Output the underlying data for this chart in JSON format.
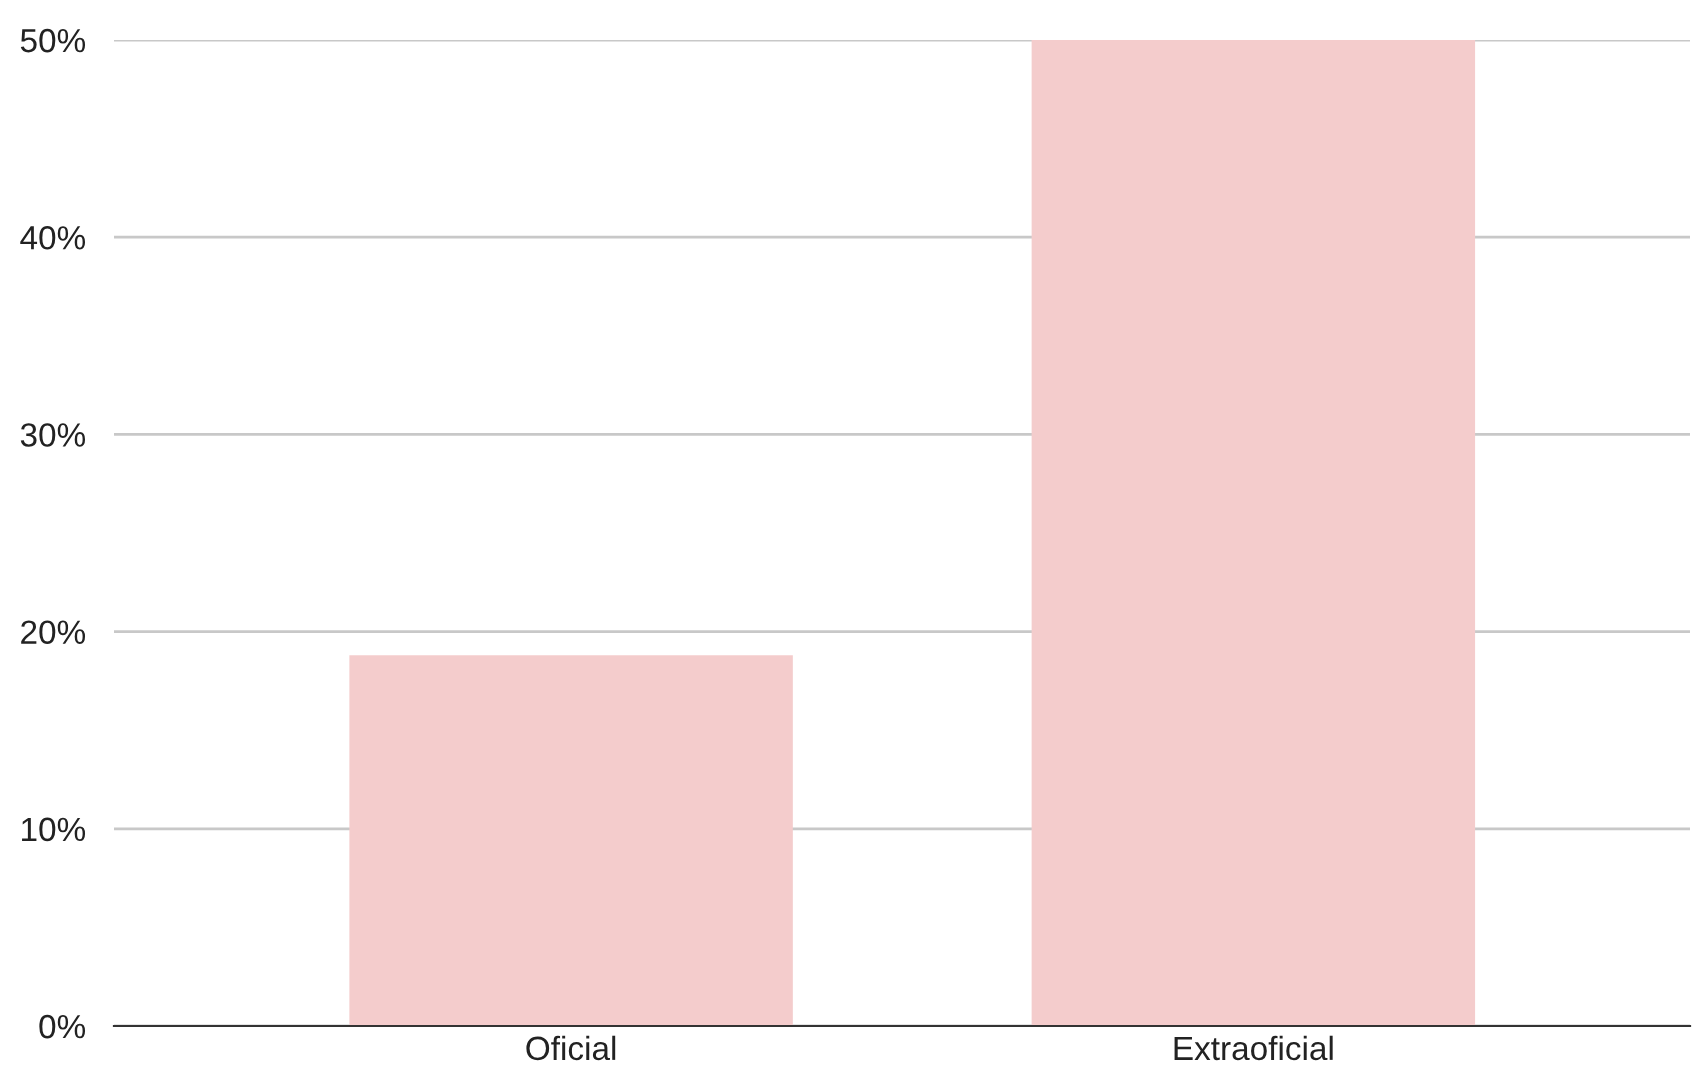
{
  "chart_data": {
    "type": "bar",
    "categories": [
      "Oficial",
      "Extraoficial"
    ],
    "values": [
      18.8,
      50
    ],
    "color": "#f4cccc",
    "ylim": [
      0,
      50
    ],
    "yticks": [
      {
        "value": 0,
        "label": "0%"
      },
      {
        "value": 10,
        "label": "10%"
      },
      {
        "value": 20,
        "label": "20%"
      },
      {
        "value": 30,
        "label": "30%"
      },
      {
        "value": 40,
        "label": "40%"
      },
      {
        "value": 50,
        "label": "50%"
      }
    ],
    "grid": "y"
  }
}
